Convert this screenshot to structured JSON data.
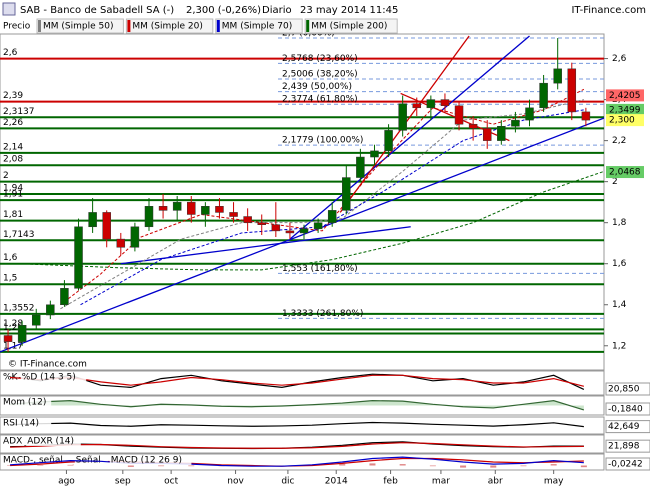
{
  "chart_data": [
    {
      "type": "candlestick",
      "title": "SAB - Banco de Sabadell SA (-)",
      "price_label": "2,300 (-0,26%)",
      "period": "Diario",
      "datetime": "23 may 2014 11:45",
      "source": "IT-Finance.com",
      "watermark": "© IT-Finance.com",
      "series_name": "Precio",
      "x": [
        4,
        11,
        18,
        25,
        32,
        39,
        46,
        53,
        60,
        67,
        74,
        81,
        88,
        95,
        102,
        109,
        116,
        123,
        130,
        137,
        144,
        151,
        158,
        165,
        172,
        179,
        186,
        193,
        200,
        207,
        214,
        221,
        228,
        235,
        242,
        249,
        256,
        263,
        270,
        277,
        284,
        291
      ],
      "open": [
        1.25,
        1.22,
        1.3,
        1.35,
        1.4,
        1.48,
        1.78,
        1.85,
        1.72,
        1.68,
        1.78,
        1.88,
        1.86,
        1.9,
        1.84,
        1.88,
        1.85,
        1.83,
        1.8,
        1.79,
        1.76,
        1.75,
        1.77,
        1.8,
        1.86,
        2.02,
        2.12,
        2.15,
        2.25,
        2.38,
        2.36,
        2.4,
        2.37,
        2.28,
        2.26,
        2.2,
        2.27,
        2.3,
        2.36,
        2.48,
        2.55,
        2.34
      ],
      "high": [
        1.28,
        1.32,
        1.38,
        1.42,
        1.52,
        1.82,
        1.92,
        1.86,
        1.75,
        1.8,
        1.92,
        1.94,
        1.93,
        1.93,
        1.9,
        1.92,
        1.9,
        1.87,
        1.84,
        1.9,
        1.8,
        1.79,
        1.82,
        1.9,
        2.08,
        2.16,
        2.18,
        2.28,
        2.42,
        2.41,
        2.42,
        2.43,
        2.39,
        2.32,
        2.3,
        2.3,
        2.34,
        2.4,
        2.52,
        2.7,
        2.58,
        2.36
      ],
      "low": [
        1.17,
        1.2,
        1.28,
        1.33,
        1.39,
        1.47,
        1.75,
        1.68,
        1.64,
        1.66,
        1.76,
        1.82,
        1.81,
        1.8,
        1.78,
        1.82,
        1.8,
        1.76,
        1.74,
        1.73,
        1.72,
        1.72,
        1.75,
        1.78,
        1.84,
        2.0,
        2.08,
        2.12,
        2.22,
        2.32,
        2.3,
        2.34,
        2.25,
        2.2,
        2.16,
        2.18,
        2.24,
        2.27,
        2.34,
        2.45,
        2.3,
        2.27
      ],
      "close": [
        1.22,
        1.3,
        1.35,
        1.4,
        1.48,
        1.78,
        1.85,
        1.72,
        1.68,
        1.78,
        1.88,
        1.86,
        1.9,
        1.84,
        1.88,
        1.85,
        1.83,
        1.8,
        1.79,
        1.76,
        1.75,
        1.77,
        1.8,
        1.86,
        2.02,
        2.12,
        2.15,
        2.25,
        2.38,
        2.36,
        2.4,
        2.37,
        2.28,
        2.26,
        2.2,
        2.27,
        2.3,
        2.36,
        2.48,
        2.55,
        2.34,
        2.3
      ],
      "up_color": "#006600",
      "down_color": "#cc0000",
      "xlim": [
        0,
        300
      ],
      "ylim": [
        1.155,
        2.71
      ],
      "yticks": [
        {
          "value": 1.2,
          "label": "1,2"
        },
        {
          "value": 1.4,
          "label": "1,4"
        },
        {
          "value": 1.6,
          "label": "1,6"
        },
        {
          "value": 1.8,
          "label": "1,8"
        },
        2,
        {
          "value": 2.2,
          "label": "2,2"
        },
        {
          "value": 2.4,
          "label": "2,4"
        },
        {
          "value": 2.6,
          "label": "2,6"
        }
      ],
      "xticks": [
        {
          "value": 33,
          "label": "ago"
        },
        {
          "value": 61,
          "label": "sep"
        },
        {
          "value": 85,
          "label": "oct"
        },
        {
          "value": 117,
          "label": "nov"
        },
        {
          "value": 143,
          "label": "dic"
        },
        {
          "value": 167,
          "label": "2014"
        },
        {
          "value": 194,
          "label": "feb"
        },
        {
          "value": 219,
          "label": "mar"
        },
        {
          "value": 246,
          "label": "abr"
        },
        {
          "value": 275,
          "label": "may"
        }
      ],
      "moving_averages": [
        {
          "name": "MM (Simple 50)",
          "color": "#808080",
          "x": [
            30,
            60,
            90,
            120,
            150,
            170,
            200,
            230,
            260,
            290
          ],
          "values": [
            1.38,
            1.55,
            1.72,
            1.8,
            1.8,
            1.82,
            2.05,
            2.3,
            2.33,
            2.4
          ]
        },
        {
          "name": "MM (Simple 20)",
          "color": "#cc0000",
          "x": [
            30,
            50,
            70,
            100,
            130,
            160,
            185,
            215,
            245,
            270,
            290
          ],
          "values": [
            1.4,
            1.55,
            1.73,
            1.84,
            1.8,
            1.76,
            2.05,
            2.36,
            2.28,
            2.35,
            2.45
          ]
        },
        {
          "name": "MM (Simple 70)",
          "color": "#0000cc",
          "x": [
            40,
            80,
            120,
            160,
            190,
            230,
            260,
            290
          ],
          "values": [
            1.4,
            1.62,
            1.75,
            1.78,
            1.95,
            2.2,
            2.3,
            2.35
          ]
        },
        {
          "name": "MM (Simple 200)",
          "color": "#006600",
          "x": [
            10,
            60,
            100,
            130,
            165,
            200,
            235,
            270,
            300
          ],
          "values": [
            1.6,
            1.58,
            1.57,
            1.57,
            1.62,
            1.7,
            1.8,
            1.95,
            2.05
          ]
        }
      ],
      "levels": [
        {
          "value": 2.6,
          "label": "2,6",
          "color": "#cc0000"
        },
        {
          "value": 2.39,
          "label": "2,39",
          "color": "#cc0000"
        },
        {
          "value": 2.3137,
          "label": "2,3137",
          "color": "#006600"
        },
        {
          "value": 2.26,
          "label": "2,26",
          "color": "#006600"
        },
        {
          "value": 2.14,
          "label": "2,14",
          "color": "#006600"
        },
        {
          "value": 2.08,
          "label": "2,08",
          "color": "#006600"
        },
        {
          "value": 2,
          "label": "2",
          "color": "#006600"
        },
        {
          "value": 1.94,
          "label": "1,94",
          "color": "#006600"
        },
        {
          "value": 1.91,
          "label": "1,91",
          "color": "#006600"
        },
        {
          "value": 1.81,
          "label": "1,81",
          "color": "#006600"
        },
        {
          "value": 1.7143,
          "label": "1,7143",
          "color": "#006600"
        },
        {
          "value": 1.6,
          "label": "1,6",
          "color": "#006600"
        },
        {
          "value": 1.5,
          "label": "1,5",
          "color": "#006600"
        },
        {
          "value": 1.3552,
          "label": "1,3552",
          "color": "#006600"
        },
        {
          "value": 1.28,
          "label": "1,28",
          "color": "#006600"
        },
        {
          "value": 1.26,
          "label": "1,26",
          "color": "#006600"
        },
        {
          "value": 1.17,
          "label": "1,17",
          "color": "#006600"
        }
      ],
      "fibonacci": [
        {
          "value": 2.7,
          "label": "2,7 (0,00%)"
        },
        {
          "value": 2.5768,
          "label": "2,5768 (23,60%)"
        },
        {
          "value": 2.5006,
          "label": "2,5006 (38,20%)"
        },
        {
          "value": 2.439,
          "label": "2,439 (50,00%)"
        },
        {
          "value": 2.3774,
          "label": "2,3774 (61,80%)"
        },
        {
          "value": 2.1779,
          "label": "2,1779 (100,00%)"
        },
        {
          "value": 1.553,
          "label": "1,553 (161,80%)"
        },
        {
          "value": 1.3333,
          "label": "1,3333 (261,80%)"
        }
      ],
      "trendlines": [
        {
          "color": "#0000cc",
          "x": [
            0,
            300
          ],
          "y": [
            1.17,
            2.31
          ]
        },
        {
          "color": "#0000cc",
          "x": [
            144,
            263
          ],
          "y": [
            1.72,
            2.71
          ]
        },
        {
          "color": "#0000cc",
          "x": [
            60,
            204
          ],
          "y": [
            1.6,
            1.78
          ]
        },
        {
          "color": "#cc0000",
          "x": [
            169,
            233
          ],
          "y": [
            1.85,
            2.71
          ]
        },
        {
          "color": "#cc0000",
          "x": [
            199,
            253
          ],
          "y": [
            2.43,
            2.2
          ]
        }
      ],
      "price_tags": [
        {
          "value": 2.4205,
          "label": "2,4205",
          "color": "#ff6666"
        },
        {
          "value": 2.3499,
          "label": "2,3499",
          "color": "#66cc66"
        },
        {
          "value": 2.3,
          "label": "2,300",
          "color": "#ffff66"
        },
        {
          "value": 2.0468,
          "label": "2,0468",
          "color": "#66cc66"
        }
      ]
    },
    {
      "type": "line",
      "xlim": [
        0,
        300
      ],
      "ylim": [
        0,
        100
      ],
      "x": [
        5,
        20,
        35,
        50,
        65,
        80,
        95,
        110,
        125,
        140,
        155,
        170,
        185,
        200,
        215,
        230,
        245,
        260,
        275,
        290
      ],
      "readout": {
        "value": 20.85,
        "label": "20,850"
      },
      "series": [
        {
          "name": "%K",
          "color": "#000000",
          "values": [
            80,
            60,
            85,
            40,
            30,
            70,
            85,
            60,
            45,
            30,
            55,
            75,
            90,
            85,
            60,
            70,
            40,
            55,
            85,
            20.85
          ]
        },
        {
          "name": "%D (14 3 5)",
          "color": "#cc0000",
          "values": [
            75,
            65,
            75,
            55,
            40,
            55,
            75,
            65,
            50,
            40,
            50,
            68,
            85,
            85,
            70,
            65,
            50,
            50,
            70,
            35
          ]
        }
      ]
    },
    {
      "type": "line",
      "xlim": [
        0,
        300
      ],
      "ylim": [
        -0.35,
        0.35
      ],
      "x": [
        5,
        20,
        35,
        50,
        65,
        80,
        95,
        110,
        125,
        140,
        155,
        170,
        185,
        200,
        215,
        230,
        245,
        260,
        275,
        290
      ],
      "readout": {
        "value": -0.184,
        "label": "-0,1840"
      },
      "series": [
        {
          "name": "Mom (12)",
          "color": "#336633",
          "kind": "area",
          "values": [
            0.05,
            0.15,
            0.2,
            0.05,
            -0.05,
            0.05,
            0.02,
            -0.03,
            -0.05,
            -0.02,
            0.03,
            0.1,
            0.2,
            0.18,
            0.05,
            -0.05,
            -0.1,
            0.05,
            0.2,
            -0.184
          ]
        }
      ]
    },
    {
      "type": "line",
      "xlim": [
        0,
        300
      ],
      "ylim": [
        0,
        100
      ],
      "x": [
        5,
        20,
        35,
        50,
        65,
        80,
        95,
        110,
        125,
        140,
        155,
        170,
        185,
        200,
        215,
        230,
        245,
        260,
        275,
        290
      ],
      "readout": {
        "value": 42.649,
        "label": "42,649"
      },
      "series": [
        {
          "name": "RSI (14)",
          "color": "#000000",
          "values": [
            55,
            62,
            66,
            50,
            45,
            55,
            52,
            48,
            45,
            47,
            52,
            62,
            70,
            66,
            58,
            52,
            46,
            55,
            68,
            42.649
          ]
        }
      ]
    },
    {
      "type": "line",
      "xlim": [
        0,
        300
      ],
      "ylim": [
        0,
        60
      ],
      "x": [
        5,
        20,
        35,
        50,
        65,
        80,
        95,
        110,
        125,
        140,
        155,
        170,
        185,
        200,
        215,
        230,
        245,
        260,
        275,
        290
      ],
      "readout": {
        "value": 21.898,
        "label": "21,898"
      },
      "series": [
        {
          "name": "ADX",
          "color": "#000000",
          "values": [
            20,
            25,
            30,
            28,
            22,
            18,
            15,
            14,
            13,
            14,
            18,
            25,
            35,
            38,
            30,
            24,
            20,
            18,
            22,
            21.898
          ]
        },
        {
          "name": "ADXR (14)",
          "color": "#cc0000",
          "values": [
            18,
            22,
            27,
            28,
            25,
            20,
            17,
            15,
            14,
            14,
            16,
            21,
            30,
            35,
            32,
            27,
            22,
            19,
            20,
            21
          ]
        }
      ]
    },
    {
      "type": "line",
      "xlim": [
        0,
        300
      ],
      "ylim": [
        -0.05,
        0.15
      ],
      "x": [
        5,
        20,
        35,
        50,
        65,
        80,
        95,
        110,
        125,
        140,
        155,
        170,
        185,
        200,
        215,
        230,
        245,
        260,
        275,
        290
      ],
      "readout": {
        "value": -0.0242,
        "label": "-0,0242"
      },
      "series": [
        {
          "name": "MACD-, señal",
          "color": "#cc3333",
          "kind": "bar",
          "values": [
            0.01,
            0.02,
            0.02,
            0,
            -0.02,
            -0.01,
            -0.01,
            -0.01,
            -0.01,
            0,
            0.01,
            0.02,
            0.03,
            0.02,
            -0.01,
            -0.03,
            -0.03,
            -0.01,
            0.02,
            -0.0242
          ]
        },
        {
          "name": "Señal",
          "color": "#cc0000",
          "values": [
            0,
            0.02,
            0.05,
            0.06,
            0.05,
            0.04,
            0.03,
            0.01,
            0,
            -0.01,
            0,
            0.03,
            0.07,
            0.1,
            0.1,
            0.08,
            0.05,
            0.04,
            0.05,
            0.0642
          ]
        },
        {
          "name": "MACD (12 26 9)",
          "color": "#0000cc",
          "values": [
            0.01,
            0.04,
            0.07,
            0.06,
            0.03,
            0.03,
            0.02,
            0,
            -0.01,
            -0.01,
            0.01,
            0.05,
            0.1,
            0.12,
            0.09,
            0.05,
            0.02,
            0.03,
            0.07,
            0.04
          ]
        }
      ]
    }
  ]
}
